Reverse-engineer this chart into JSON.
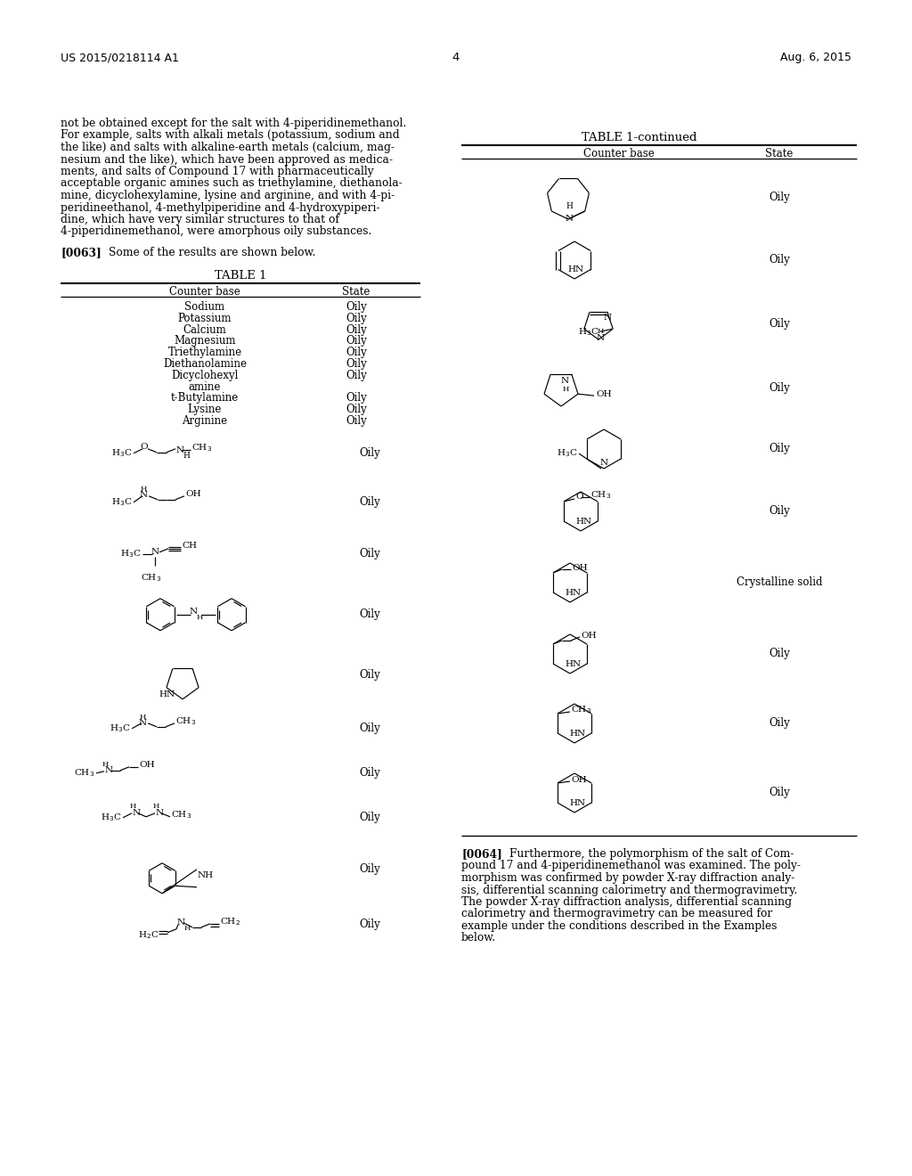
{
  "bg": "#ffffff",
  "header_left": "US 2015/0218114 A1",
  "header_right": "Aug. 6, 2015",
  "header_page": "4",
  "lc_lines": [
    "not be obtained except for the salt with 4-piperidinemethanol.",
    "For example, salts with alkali metals (potassium, sodium and",
    "the like) and salts with alkaline-earth metals (calcium, mag-",
    "nesium and the like), which have been approved as medica-",
    "ments, and salts of Compound 17 with pharmaceutically",
    "acceptable organic amines such as triethylamine, diethanola-",
    "mine, dicyclohexylamine, lysine and arginine, and with 4-pi-",
    "peridineethanol, 4-methylpiperidine and 4-hydroxypiperi-",
    "dine, which have very similar structures to that of",
    "4-piperidinemethanol, were amorphous oily substances."
  ],
  "table1_rows": [
    [
      "Sodium",
      "Oily"
    ],
    [
      "Potassium",
      "Oily"
    ],
    [
      "Calcium",
      "Oily"
    ],
    [
      "Magnesium",
      "Oily"
    ],
    [
      "Triethylamine",
      "Oily"
    ],
    [
      "Diethanolamine",
      "Oily"
    ],
    [
      "Dicyclohexyl",
      "Oily"
    ],
    [
      "amine",
      ""
    ],
    [
      "t-Butylamine",
      "Oily"
    ],
    [
      "Lysine",
      "Oily"
    ],
    [
      "Arginine",
      "Oily"
    ]
  ],
  "p64_lines": [
    "Furthermore, the polymorphism of the salt of Com-",
    "pound 17 and 4-piperidinemethanol was examined. The poly-",
    "morphism was confirmed by powder X-ray diffraction analy-",
    "sis, differential scanning calorimetry and thermogravimetry.",
    "The powder X-ray diffraction analysis, differential scanning",
    "calorimetry and thermogravimetry can be measured for",
    "example under the conditions described in the Examples",
    "below."
  ]
}
